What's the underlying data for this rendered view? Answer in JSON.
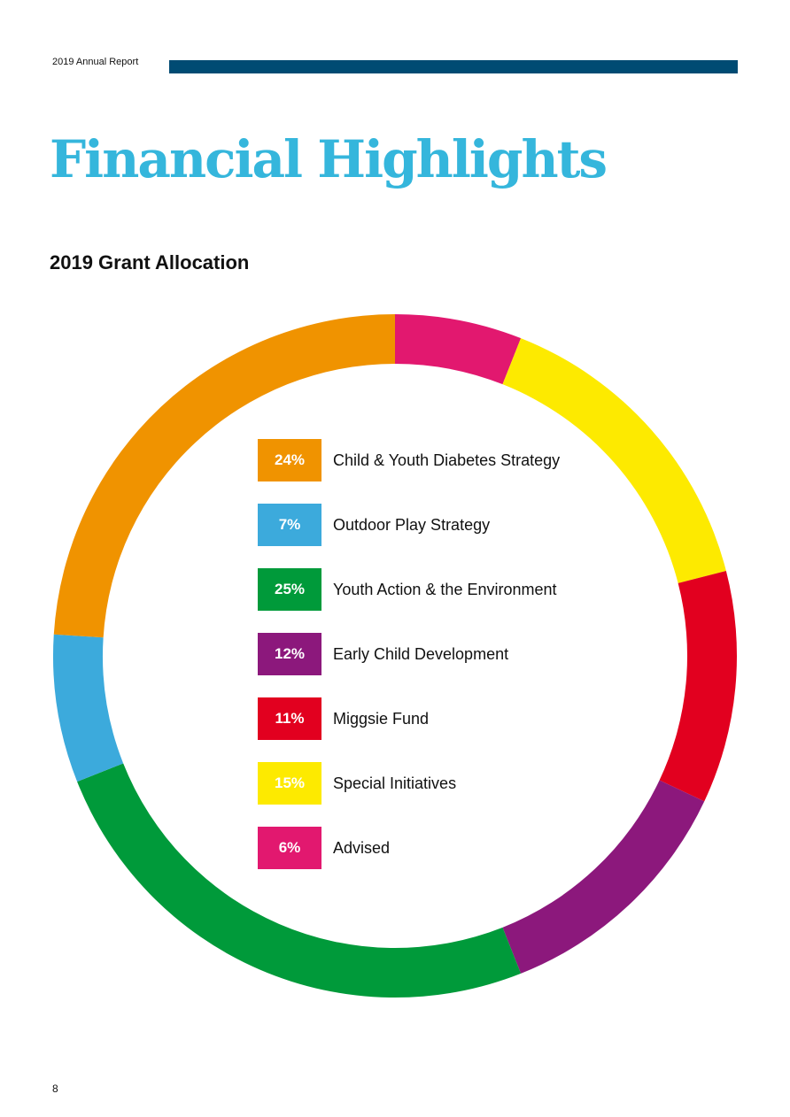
{
  "header": {
    "report_label": "2019 Annual Report",
    "accent_color": "#004b73"
  },
  "title": "Financial Highlights",
  "page_number": "8",
  "chart_data": {
    "type": "pie",
    "donut": true,
    "title": "2019 Grant Allocation",
    "legend_position": "center",
    "slices": [
      {
        "label": "Child & Youth Diabetes Strategy",
        "value": 24,
        "display": "24%",
        "color": "#f09300"
      },
      {
        "label": "Outdoor Play Strategy",
        "value": 7,
        "display": "7%",
        "color": "#3caadc"
      },
      {
        "label": "Youth Action & the Environment",
        "value": 25,
        "display": "25%",
        "color": "#009a3a"
      },
      {
        "label": "Early Child Development",
        "value": 12,
        "display": "12%",
        "color": "#8c187c"
      },
      {
        "label": "Miggsie Fund",
        "value": 11,
        "display": "11%",
        "color": "#e2001f"
      },
      {
        "label": "Special Initiatives",
        "value": 15,
        "display": "15%",
        "color": "#fdea00"
      },
      {
        "label": "Advised",
        "value": 6,
        "display": "6%",
        "color": "#e2186f"
      }
    ],
    "clockwise_order_from_top": [
      6,
      5,
      4,
      3,
      2,
      1,
      0
    ]
  }
}
